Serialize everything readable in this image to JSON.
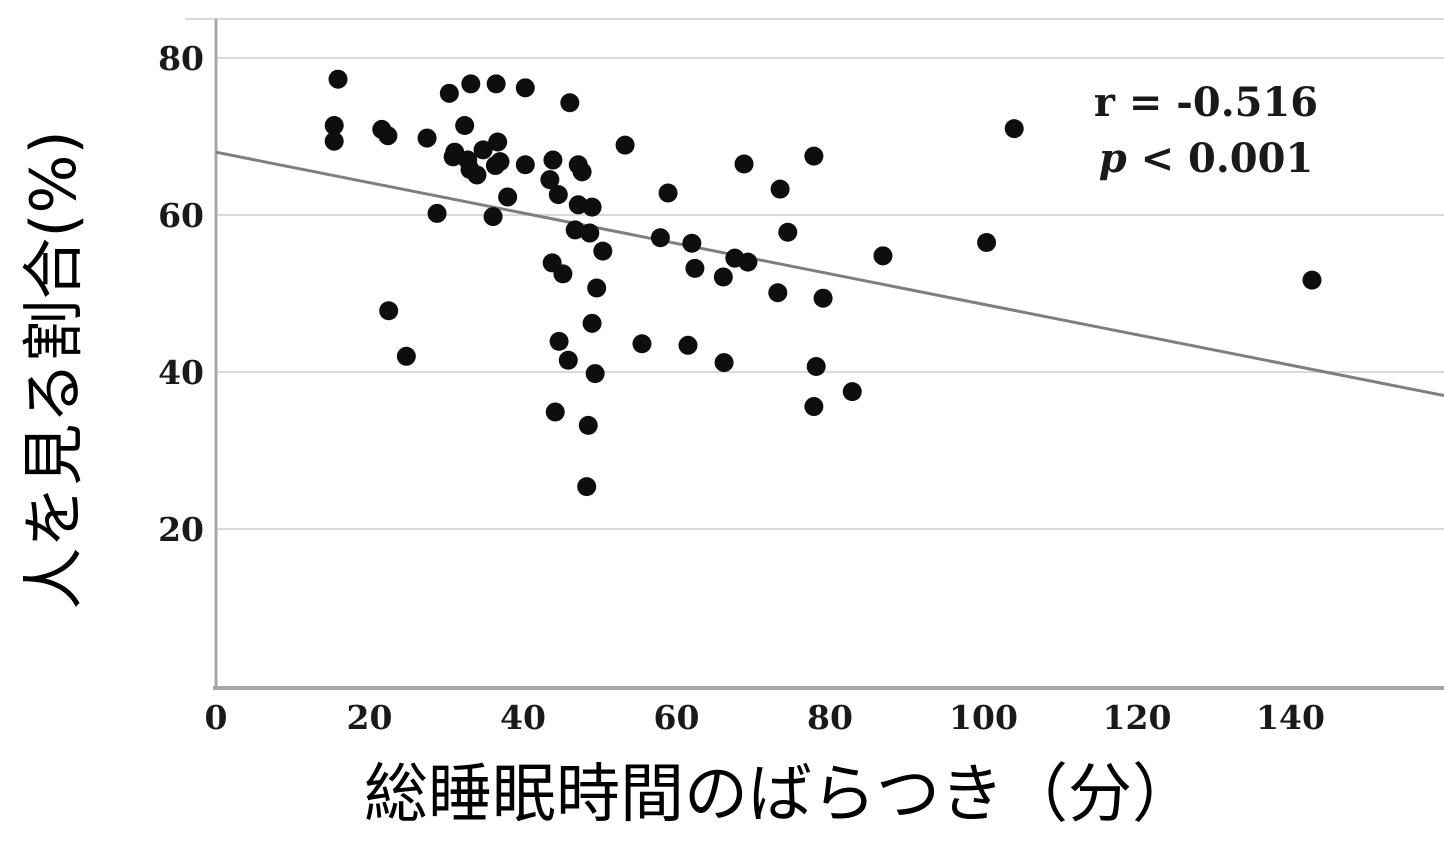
{
  "chart_data": {
    "type": "scatter",
    "xlabel": "総睡眠時間のばらつき（分）",
    "ylabel": "人を見る割合(%)",
    "xlim": [
      0,
      160
    ],
    "ylim": [
      0,
      85
    ],
    "x_ticks": [
      0,
      20,
      40,
      60,
      80,
      100,
      120,
      140
    ],
    "y_ticks": [
      20,
      40,
      60,
      80
    ],
    "grid": "horizontal",
    "legend": "none",
    "annotation": {
      "r_line": "r = -0.516",
      "p_var": "p",
      "p_rest": " < 0.001"
    },
    "points": [
      [
        15.9,
        77.3
      ],
      [
        15.4,
        71.4
      ],
      [
        15.4,
        69.4
      ],
      [
        21.6,
        70.9
      ],
      [
        22.4,
        70.1
      ],
      [
        27.5,
        69.8
      ],
      [
        30.4,
        75.5
      ],
      [
        33.2,
        76.7
      ],
      [
        36.5,
        76.7
      ],
      [
        40.3,
        76.2
      ],
      [
        46.1,
        74.3
      ],
      [
        32.4,
        71.4
      ],
      [
        31.1,
        68.0
      ],
      [
        32.8,
        67.0
      ],
      [
        34.8,
        68.3
      ],
      [
        36.7,
        69.3
      ],
      [
        37.0,
        66.8
      ],
      [
        30.9,
        67.4
      ],
      [
        34.0,
        65.1
      ],
      [
        33.1,
        65.8
      ],
      [
        36.4,
        66.3
      ],
      [
        40.3,
        66.4
      ],
      [
        28.8,
        60.2
      ],
      [
        36.1,
        59.8
      ],
      [
        38.0,
        62.3
      ],
      [
        22.5,
        47.8
      ],
      [
        24.8,
        42.0
      ],
      [
        43.9,
        67.0
      ],
      [
        43.5,
        64.5
      ],
      [
        44.6,
        62.6
      ],
      [
        47.2,
        66.4
      ],
      [
        47.7,
        65.5
      ],
      [
        47.2,
        61.3
      ],
      [
        49.0,
        61.0
      ],
      [
        46.8,
        58.1
      ],
      [
        48.7,
        57.7
      ],
      [
        50.4,
        55.4
      ],
      [
        43.8,
        53.9
      ],
      [
        45.2,
        52.5
      ],
      [
        49.6,
        50.7
      ],
      [
        49.0,
        46.2
      ],
      [
        44.7,
        43.9
      ],
      [
        45.9,
        41.5
      ],
      [
        49.4,
        39.8
      ],
      [
        44.2,
        34.9
      ],
      [
        48.5,
        33.2
      ],
      [
        48.3,
        25.4
      ],
      [
        53.3,
        68.9
      ],
      [
        58.9,
        62.8
      ],
      [
        55.5,
        43.6
      ],
      [
        61.5,
        43.4
      ],
      [
        57.9,
        57.1
      ],
      [
        62.0,
        56.4
      ],
      [
        62.4,
        53.2
      ],
      [
        66.1,
        52.1
      ],
      [
        67.6,
        54.5
      ],
      [
        69.3,
        54.0
      ],
      [
        66.2,
        41.2
      ],
      [
        68.8,
        66.5
      ],
      [
        73.5,
        63.3
      ],
      [
        73.2,
        50.1
      ],
      [
        74.5,
        57.8
      ],
      [
        77.9,
        67.5
      ],
      [
        78.2,
        40.7
      ],
      [
        79.1,
        49.4
      ],
      [
        77.9,
        35.6
      ],
      [
        82.9,
        37.5
      ],
      [
        86.9,
        54.8
      ],
      [
        100.4,
        56.5
      ],
      [
        104.0,
        71.0
      ],
      [
        142.8,
        51.7
      ]
    ],
    "trendline": {
      "x1": 0,
      "y1": 68,
      "x2": 160,
      "y2": 37
    },
    "colors": {
      "point": "#0e0e0e",
      "trendline": "#7f7f7f",
      "grid": "#d9d9d9",
      "axis": "#a6a6a6",
      "text": "#1a1a1a"
    }
  }
}
